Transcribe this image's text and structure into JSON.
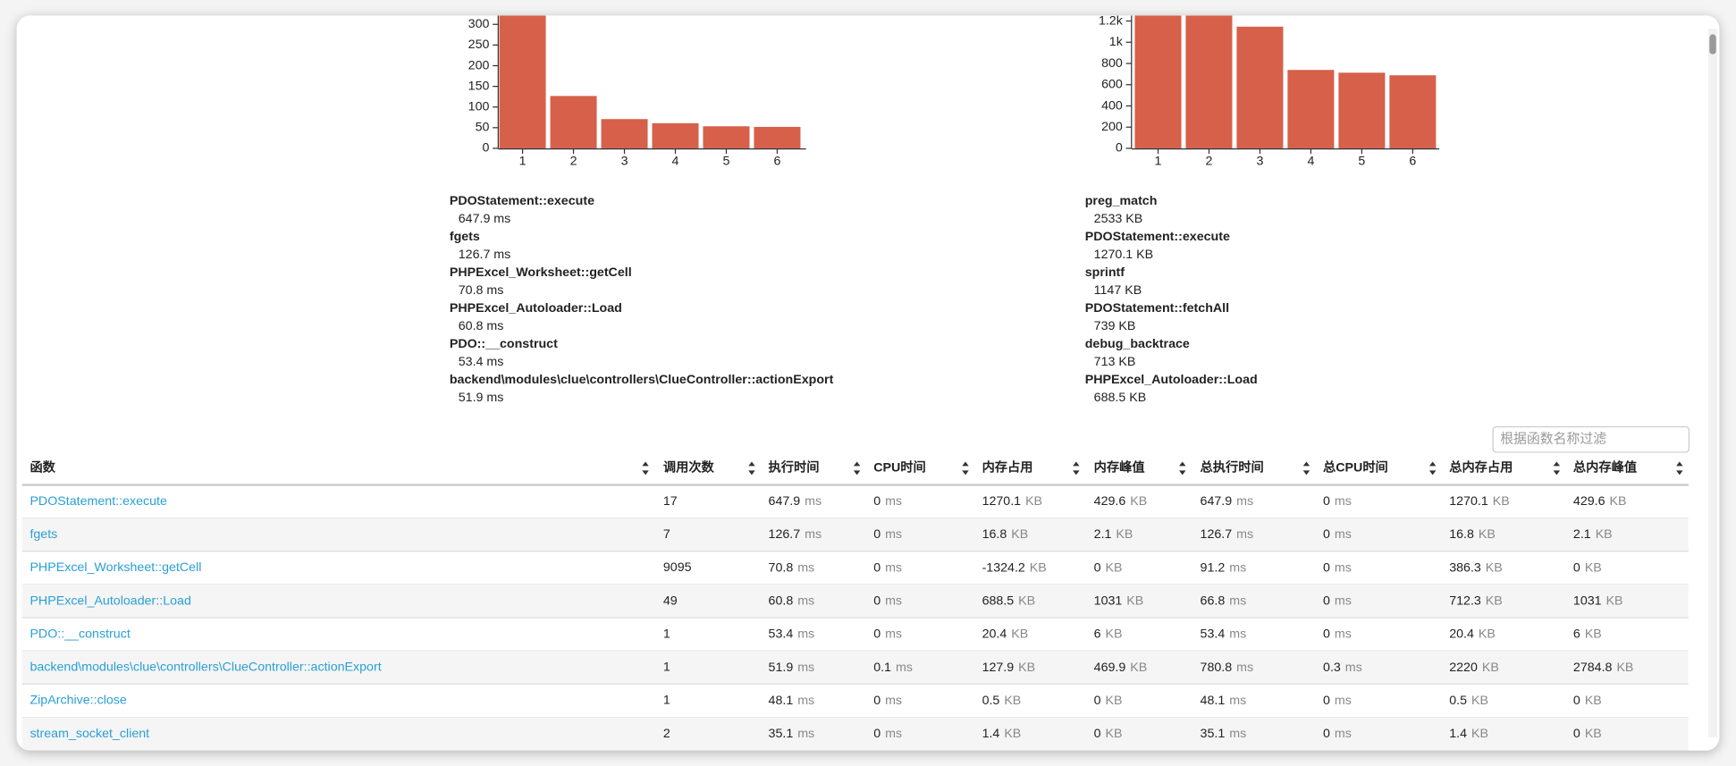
{
  "chart_data": [
    {
      "type": "bar",
      "categories": [
        "1",
        "2",
        "3",
        "4",
        "5",
        "6"
      ],
      "values": [
        647.9,
        126.7,
        70.8,
        60.8,
        53.4,
        51.9
      ],
      "color": "#d6604a",
      "ylim": [
        0,
        700
      ],
      "yticks": [
        0,
        50,
        100,
        150,
        200,
        250,
        300
      ]
    },
    {
      "type": "bar",
      "categories": [
        "1",
        "2",
        "3",
        "4",
        "5",
        "6"
      ],
      "values": [
        2533,
        1270.1,
        1147,
        739,
        713,
        688.5
      ],
      "color": "#d6604a",
      "ylim": [
        0,
        2600
      ],
      "yticks": [
        0,
        200,
        400,
        600,
        800,
        {
          "value": 1000,
          "label": "1k"
        },
        {
          "value": 1200,
          "label": "1.2k"
        }
      ]
    }
  ],
  "summaries": [
    [
      {
        "name": "PDOStatement::execute",
        "value": "647.9 ms"
      },
      {
        "name": "fgets",
        "value": "126.7 ms"
      },
      {
        "name": "PHPExcel_Worksheet::getCell",
        "value": "70.8 ms"
      },
      {
        "name": "PHPExcel_Autoloader::Load",
        "value": "60.8 ms"
      },
      {
        "name": "PDO::__construct",
        "value": "53.4 ms"
      },
      {
        "name": "backend\\modules\\clue\\controllers\\ClueController::actionExport",
        "value": "51.9 ms"
      }
    ],
    [
      {
        "name": "preg_match",
        "value": "2533 KB"
      },
      {
        "name": "PDOStatement::execute",
        "value": "1270.1 KB"
      },
      {
        "name": "sprintf",
        "value": "1147 KB"
      },
      {
        "name": "PDOStatement::fetchAll",
        "value": "739 KB"
      },
      {
        "name": "debug_backtrace",
        "value": "713 KB"
      },
      {
        "name": "PHPExcel_Autoloader::Load",
        "value": "688.5 KB"
      }
    ]
  ],
  "filter_placeholder": "根据函数名称过滤",
  "table": {
    "headers": [
      "函数",
      "调用次数",
      "执行时间",
      "CPU时间",
      "内存占用",
      "内存峰值",
      "总执行时间",
      "总CPU时间",
      "总内存占用",
      "总内存峰值"
    ],
    "rows": [
      [
        "PDOStatement::execute",
        17,
        [
          647.9,
          "ms"
        ],
        [
          0,
          "ms"
        ],
        [
          1270.1,
          "KB"
        ],
        [
          429.6,
          "KB"
        ],
        [
          647.9,
          "ms"
        ],
        [
          0,
          "ms"
        ],
        [
          1270.1,
          "KB"
        ],
        [
          429.6,
          "KB"
        ]
      ],
      [
        "fgets",
        7,
        [
          126.7,
          "ms"
        ],
        [
          0,
          "ms"
        ],
        [
          16.8,
          "KB"
        ],
        [
          2.1,
          "KB"
        ],
        [
          126.7,
          "ms"
        ],
        [
          0,
          "ms"
        ],
        [
          16.8,
          "KB"
        ],
        [
          2.1,
          "KB"
        ]
      ],
      [
        "PHPExcel_Worksheet::getCell",
        9095,
        [
          70.8,
          "ms"
        ],
        [
          0,
          "ms"
        ],
        [
          -1324.2,
          "KB"
        ],
        [
          0,
          "KB"
        ],
        [
          91.2,
          "ms"
        ],
        [
          0,
          "ms"
        ],
        [
          386.3,
          "KB"
        ],
        [
          0,
          "KB"
        ]
      ],
      [
        "PHPExcel_Autoloader::Load",
        49,
        [
          60.8,
          "ms"
        ],
        [
          0,
          "ms"
        ],
        [
          688.5,
          "KB"
        ],
        [
          1031,
          "KB"
        ],
        [
          66.8,
          "ms"
        ],
        [
          0,
          "ms"
        ],
        [
          712.3,
          "KB"
        ],
        [
          1031,
          "KB"
        ]
      ],
      [
        "PDO::__construct",
        1,
        [
          53.4,
          "ms"
        ],
        [
          0,
          "ms"
        ],
        [
          20.4,
          "KB"
        ],
        [
          6,
          "KB"
        ],
        [
          53.4,
          "ms"
        ],
        [
          0,
          "ms"
        ],
        [
          20.4,
          "KB"
        ],
        [
          6,
          "KB"
        ]
      ],
      [
        "backend\\modules\\clue\\controllers\\ClueController::actionExport",
        1,
        [
          51.9,
          "ms"
        ],
        [
          0.1,
          "ms"
        ],
        [
          127.9,
          "KB"
        ],
        [
          469.9,
          "KB"
        ],
        [
          780.8,
          "ms"
        ],
        [
          0.3,
          "ms"
        ],
        [
          2220,
          "KB"
        ],
        [
          2784.8,
          "KB"
        ]
      ],
      [
        "ZipArchive::close",
        1,
        [
          48.1,
          "ms"
        ],
        [
          0,
          "ms"
        ],
        [
          0.5,
          "KB"
        ],
        [
          0,
          "KB"
        ],
        [
          48.1,
          "ms"
        ],
        [
          0,
          "ms"
        ],
        [
          0.5,
          "KB"
        ],
        [
          0,
          "KB"
        ]
      ],
      [
        "stream_socket_client",
        2,
        [
          35.1,
          "ms"
        ],
        [
          0,
          "ms"
        ],
        [
          1.4,
          "KB"
        ],
        [
          0,
          "KB"
        ],
        [
          35.1,
          "ms"
        ],
        [
          0,
          "ms"
        ],
        [
          1.4,
          "KB"
        ],
        [
          0,
          "KB"
        ]
      ]
    ]
  }
}
